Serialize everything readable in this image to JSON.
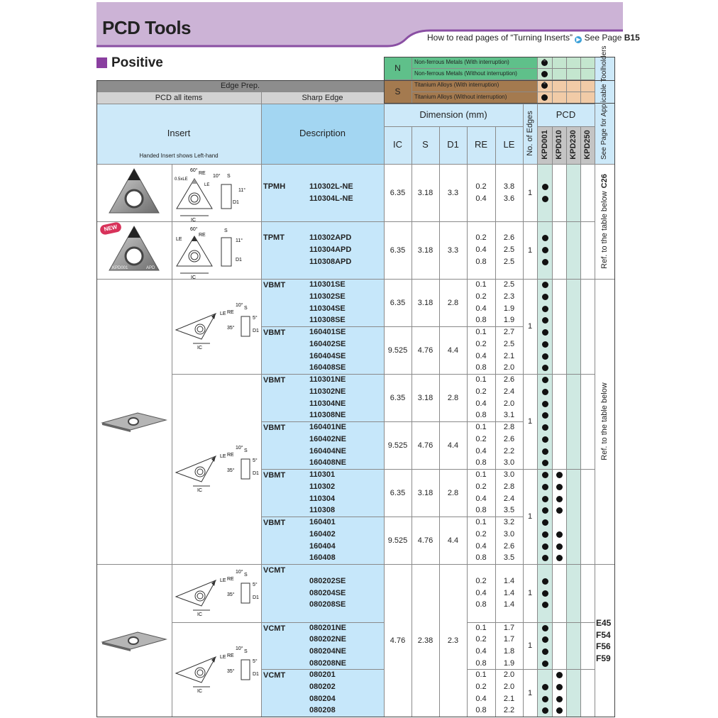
{
  "header": {
    "title": "PCD Tools",
    "reference_text": "How to read pages of “Turning Inserts”",
    "see_page_label": "See Page",
    "see_page_ref": "B15",
    "colors": {
      "band": "#ccb3d6",
      "band_line": "#8a4fa3",
      "accent": "#8a3fa0"
    }
  },
  "section": {
    "title": "Positive"
  },
  "materials": [
    {
      "group": "N",
      "rows": [
        {
          "label": "Non-ferrous Metals (With interruption)",
          "mark": "interrupted"
        },
        {
          "label": "Non-ferrous Metals (Without interruption)",
          "mark": "continuous"
        }
      ],
      "color": "#5fc08a",
      "tint": "#c4e6cf"
    },
    {
      "group": "S",
      "rows": [
        {
          "label": "Titanium Alloys (With interruption)",
          "mark": "interrupted"
        },
        {
          "label": "Titanium Alloys (Without interruption)",
          "mark": "continuous"
        }
      ],
      "color": "#a47a4f",
      "tint": "#f1cba7"
    }
  ],
  "edge_prep": {
    "title": "Edge Prep.",
    "pcd_all_items": "PCD all items",
    "sharp_edge": "Sharp Edge"
  },
  "columns": {
    "insert": "Insert",
    "insert_note": "Handed Insert shows Left-hand",
    "description": "Description",
    "dimension": "Dimension (mm)",
    "dims": [
      "IC",
      "S",
      "D1",
      "RE",
      "LE"
    ],
    "edges": "No. of Edges",
    "pcd": "PCD",
    "grades": [
      "KPD001",
      "KPD010",
      "KPD230",
      "KPD250"
    ],
    "toolholders": "See Page for Applicable Toolholders"
  },
  "groups": [
    {
      "series": "TPMH",
      "items": [
        {
          "code": "110302L-NE",
          "re": "0.2",
          "le": "3.8",
          "grades": [
            1,
            0,
            0,
            0
          ]
        },
        {
          "code": "110304L-NE",
          "re": "0.4",
          "le": "3.6",
          "grades": [
            1,
            0,
            0,
            0
          ]
        }
      ]
    },
    {
      "series": "TPMT",
      "items": [
        {
          "code": "110302APD",
          "re": "0.2",
          "le": "2.6",
          "grades": [
            1,
            0,
            0,
            0
          ]
        },
        {
          "code": "110304APD",
          "re": "0.4",
          "le": "2.5",
          "grades": [
            1,
            0,
            0,
            0
          ]
        },
        {
          "code": "110308APD",
          "re": "0.8",
          "le": "2.5",
          "grades": [
            1,
            0,
            0,
            0
          ]
        }
      ]
    },
    {
      "series": "VBMT",
      "items": [
        {
          "code": "110301SE",
          "re": "0.1",
          "le": "2.5",
          "grades": [
            1,
            0,
            0,
            0
          ]
        },
        {
          "code": "110302SE",
          "re": "0.2",
          "le": "2.3",
          "grades": [
            1,
            0,
            0,
            0
          ]
        },
        {
          "code": "110304SE",
          "re": "0.4",
          "le": "1.9",
          "grades": [
            1,
            0,
            0,
            0
          ]
        },
        {
          "code": "110308SE",
          "re": "0.8",
          "le": "1.9",
          "grades": [
            1,
            0,
            0,
            0
          ]
        }
      ]
    },
    {
      "series": "VBMT",
      "items": [
        {
          "code": "160401SE",
          "re": "0.1",
          "le": "2.7",
          "grades": [
            1,
            0,
            0,
            0
          ]
        },
        {
          "code": "160402SE",
          "re": "0.2",
          "le": "2.5",
          "grades": [
            1,
            0,
            0,
            0
          ]
        },
        {
          "code": "160404SE",
          "re": "0.4",
          "le": "2.1",
          "grades": [
            1,
            0,
            0,
            0
          ]
        },
        {
          "code": "160408SE",
          "re": "0.8",
          "le": "2.0",
          "grades": [
            1,
            0,
            0,
            0
          ]
        }
      ]
    },
    {
      "series": "VBMT",
      "items": [
        {
          "code": "110301NE",
          "re": "0.1",
          "le": "2.6",
          "grades": [
            1,
            0,
            0,
            0
          ]
        },
        {
          "code": "110302NE",
          "re": "0.2",
          "le": "2.4",
          "grades": [
            1,
            0,
            0,
            0
          ]
        },
        {
          "code": "110304NE",
          "re": "0.4",
          "le": "2.0",
          "grades": [
            1,
            0,
            0,
            0
          ]
        },
        {
          "code": "110308NE",
          "re": "0.8",
          "le": "3.1",
          "grades": [
            1,
            0,
            0,
            0
          ]
        }
      ]
    },
    {
      "series": "VBMT",
      "items": [
        {
          "code": "160401NE",
          "re": "0.1",
          "le": "2.8",
          "grades": [
            1,
            0,
            0,
            0
          ]
        },
        {
          "code": "160402NE",
          "re": "0.2",
          "le": "2.6",
          "grades": [
            1,
            0,
            0,
            0
          ]
        },
        {
          "code": "160404NE",
          "re": "0.4",
          "le": "2.2",
          "grades": [
            1,
            0,
            0,
            0
          ]
        },
        {
          "code": "160408NE",
          "re": "0.8",
          "le": "3.0",
          "grades": [
            1,
            0,
            0,
            0
          ]
        }
      ]
    },
    {
      "series": "VBMT",
      "items": [
        {
          "code": "110301",
          "re": "0.1",
          "le": "3.0",
          "grades": [
            1,
            1,
            0,
            0
          ]
        },
        {
          "code": "110302",
          "re": "0.2",
          "le": "2.8",
          "grades": [
            1,
            1,
            0,
            0
          ]
        },
        {
          "code": "110304",
          "re": "0.4",
          "le": "2.4",
          "grades": [
            1,
            1,
            0,
            0
          ]
        },
        {
          "code": "110308",
          "re": "0.8",
          "le": "3.5",
          "grades": [
            1,
            1,
            0,
            0
          ]
        }
      ]
    },
    {
      "series": "VBMT",
      "items": [
        {
          "code": "160401",
          "re": "0.1",
          "le": "3.2",
          "grades": [
            1,
            0,
            0,
            0
          ]
        },
        {
          "code": "160402",
          "re": "0.2",
          "le": "3.0",
          "grades": [
            1,
            1,
            0,
            0
          ]
        },
        {
          "code": "160404",
          "re": "0.4",
          "le": "2.6",
          "grades": [
            1,
            1,
            0,
            0
          ]
        },
        {
          "code": "160408",
          "re": "0.8",
          "le": "3.5",
          "grades": [
            1,
            1,
            0,
            0
          ]
        }
      ]
    },
    {
      "series": "VCMT",
      "items": [
        {
          "code": "080202SE",
          "re": "0.2",
          "le": "1.4",
          "grades": [
            1,
            0,
            0,
            0
          ]
        },
        {
          "code": "080204SE",
          "re": "0.4",
          "le": "1.4",
          "grades": [
            1,
            0,
            0,
            0
          ]
        },
        {
          "code": "080208SE",
          "re": "0.8",
          "le": "1.4",
          "grades": [
            1,
            0,
            0,
            0
          ]
        }
      ]
    },
    {
      "series": "VCMT",
      "items": [
        {
          "code": "080201NE",
          "re": "0.1",
          "le": "1.7",
          "grades": [
            1,
            0,
            0,
            0
          ]
        },
        {
          "code": "080202NE",
          "re": "0.2",
          "le": "1.7",
          "grades": [
            1,
            0,
            0,
            0
          ]
        },
        {
          "code": "080204NE",
          "re": "0.4",
          "le": "1.8",
          "grades": [
            1,
            0,
            0,
            0
          ]
        },
        {
          "code": "080208NE",
          "re": "0.8",
          "le": "1.9",
          "grades": [
            1,
            0,
            0,
            0
          ]
        }
      ]
    },
    {
      "series": "VCMT",
      "items": [
        {
          "code": "080201",
          "re": "0.1",
          "le": "2.0",
          "grades": [
            0,
            1,
            0,
            0
          ]
        },
        {
          "code": "080202",
          "re": "0.2",
          "le": "2.0",
          "grades": [
            1,
            1,
            0,
            0
          ]
        },
        {
          "code": "080204",
          "re": "0.4",
          "le": "2.1",
          "grades": [
            1,
            1,
            0,
            0
          ]
        },
        {
          "code": "080208",
          "re": "0.8",
          "le": "2.2",
          "grades": [
            1,
            1,
            0,
            0
          ]
        }
      ]
    }
  ],
  "dimension_blocks": [
    {
      "ic": "6.35",
      "s": "3.18",
      "d1": "3.3"
    },
    {
      "ic": "6.35",
      "s": "3.18",
      "d1": "3.3"
    },
    {
      "ic": "6.35",
      "s": "3.18",
      "d1": "2.8"
    },
    {
      "ic": "9.525",
      "s": "4.76",
      "d1": "4.4"
    },
    {
      "ic": "6.35",
      "s": "3.18",
      "d1": "2.8"
    },
    {
      "ic": "9.525",
      "s": "4.76",
      "d1": "4.4"
    },
    {
      "ic": "6.35",
      "s": "3.18",
      "d1": "2.8"
    },
    {
      "ic": "9.525",
      "s": "4.76",
      "d1": "4.4"
    },
    {
      "ic": "4.76",
      "s": "2.38",
      "d1": "2.3"
    }
  ],
  "edge_blocks": [
    "1",
    "1",
    "1",
    "1",
    "1",
    "1",
    "1",
    "1"
  ],
  "toolholder_refs": [
    {
      "text": "Ref. to the table below",
      "page": "C26"
    },
    {
      "text": "Ref. to the table below",
      "page": ""
    },
    {
      "text": "",
      "pages": [
        "E45",
        "F54",
        "F56",
        "F59"
      ]
    }
  ],
  "images": {
    "new_badge": "NEW",
    "insert_marking_grade": "KPD001",
    "insert_marking_type": "APD"
  },
  "drawings": {
    "tpmh": [
      "0.5xLE",
      "60°",
      "RE",
      "LE",
      "10°",
      "S",
      "11°",
      "D1",
      "IC"
    ],
    "tpmt": [
      "60°",
      "LE",
      "RE",
      "S",
      "11°",
      "D1",
      "IC"
    ],
    "vbmt": [
      "10°",
      "S",
      "LE",
      "RE",
      "5°",
      "35°",
      "D1",
      "IC"
    ]
  },
  "colors": {
    "header_light_blue": "#cde9f9",
    "description_blue": "#a3d6f2",
    "body_blue": "#c6e7fa",
    "grade_tint": "#cfe9e2",
    "grade_header": "#c4c4c4",
    "edge_prep": "#8d8d8d",
    "edge_prep_sub": "#d2d2d2"
  }
}
